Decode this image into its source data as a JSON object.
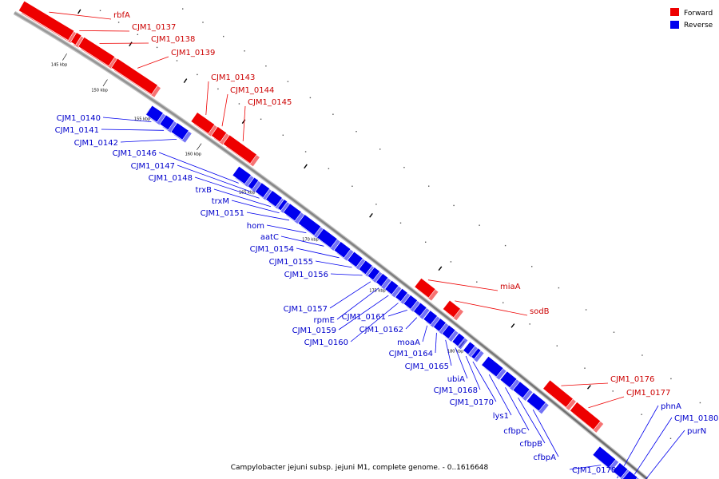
{
  "legend": {
    "forward_label": "Forward",
    "reverse_label": "Reverse",
    "forward_color": "#ee0000",
    "reverse_color": "#0000ee"
  },
  "caption": "Campylobacter jejuni subsp. jejuni M1, complete genome. - 0..1616648",
  "scale": {
    "tick_labels": [
      "145 kbp",
      "150 kbp",
      "155 kbp",
      "160 kbp",
      "165 kbp",
      "170 kbp",
      "175 kbp",
      "180 kbp"
    ]
  },
  "forward_genes": [
    {
      "label": "rbfA"
    },
    {
      "label": "CJM1_0137"
    },
    {
      "label": "CJM1_0138"
    },
    {
      "label": "CJM1_0139"
    },
    {
      "label": "CJM1_0143"
    },
    {
      "label": "CJM1_0144"
    },
    {
      "label": "CJM1_0145"
    },
    {
      "label": "miaA"
    },
    {
      "label": "sodB"
    },
    {
      "label": "CJM1_0176"
    },
    {
      "label": "CJM1_0177"
    }
  ],
  "reverse_genes": [
    {
      "label": "CJM1_0140"
    },
    {
      "label": "CJM1_0141"
    },
    {
      "label": "CJM1_0142"
    },
    {
      "label": "CJM1_0146"
    },
    {
      "label": "CJM1_0147"
    },
    {
      "label": "CJM1_0148"
    },
    {
      "label": "trxB"
    },
    {
      "label": "trxM"
    },
    {
      "label": "CJM1_0151"
    },
    {
      "label": "hom"
    },
    {
      "label": "aatC"
    },
    {
      "label": "CJM1_0154"
    },
    {
      "label": "CJM1_0155"
    },
    {
      "label": "CJM1_0156"
    },
    {
      "label": "CJM1_0157"
    },
    {
      "label": "rpmE"
    },
    {
      "label": "CJM1_0159"
    },
    {
      "label": "CJM1_0160"
    },
    {
      "label": "CJM1_0161"
    },
    {
      "label": "CJM1_0162"
    },
    {
      "label": "moaA"
    },
    {
      "label": "CJM1_0164"
    },
    {
      "label": "CJM1_0165"
    },
    {
      "label": "ubiA"
    },
    {
      "label": "CJM1_0168"
    },
    {
      "label": "CJM1_0170"
    },
    {
      "label": "lys1"
    },
    {
      "label": "cfbpC"
    },
    {
      "label": "cfbpB"
    },
    {
      "label": "cfbpA"
    },
    {
      "label": "CJM1_0178"
    },
    {
      "label": "phnA"
    },
    {
      "label": "CJM1_0180"
    },
    {
      "label": "purN"
    }
  ]
}
